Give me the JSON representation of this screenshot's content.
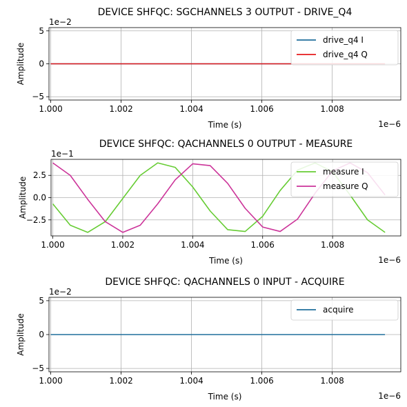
{
  "chart_data": [
    {
      "type": "line",
      "title": "DEVICE SHFQC: SGCHANNELS 3 OUTPUT - DRIVE_Q4",
      "xlabel": "Time (s)",
      "ylabel": "Amplitude",
      "x_offset_label": "1e−6",
      "y_offset_label": "1e−2",
      "xlim": [
        0.99995,
        1.00995
      ],
      "ylim": [
        -5.5,
        5.5
      ],
      "x_ticks": [
        1.0,
        1.002,
        1.004,
        1.006,
        1.008
      ],
      "x_tick_labels": [
        "1.000",
        "1.002",
        "1.004",
        "1.006",
        "1.008"
      ],
      "y_ticks": [
        5,
        0,
        -5
      ],
      "y_tick_labels": [
        "5",
        "0",
        "−5"
      ],
      "grid": true,
      "legend_position": "top-right",
      "series": [
        {
          "name": "drive_q4 I",
          "color": "#1f6e9c",
          "x": [
            1.0,
            1.0095
          ],
          "y": [
            0,
            0
          ]
        },
        {
          "name": "drive_q4 Q",
          "color": "#e41a1c",
          "x": [
            1.0,
            1.0095
          ],
          "y": [
            0,
            0
          ]
        }
      ]
    },
    {
      "type": "line",
      "title": "DEVICE SHFQC: QACHANNELS 0 OUTPUT - MEASURE",
      "xlabel": "Time (s)",
      "ylabel": "Amplitude",
      "x_offset_label": "1e−6",
      "y_offset_label": "1e−1",
      "xlim": [
        0.99995,
        1.00995
      ],
      "ylim": [
        -4.3,
        4.3
      ],
      "x_ticks": [
        1.0,
        1.002,
        1.004,
        1.006,
        1.008
      ],
      "x_tick_labels": [
        "1.000",
        "1.002",
        "1.004",
        "1.006",
        "1.008"
      ],
      "y_ticks": [
        2.5,
        0,
        -2.5
      ],
      "y_tick_labels": [
        "2.5",
        "0.0",
        "−2.5"
      ],
      "grid": true,
      "legend_position": "top-right",
      "series": [
        {
          "name": "measure I",
          "color": "#66cc33",
          "x": [
            1.0,
            1.0005,
            1.001,
            1.0015,
            1.002,
            1.0025,
            1.003,
            1.0035,
            1.004,
            1.0045,
            1.005,
            1.0055,
            1.006,
            1.0065,
            1.007,
            1.0075,
            1.008,
            1.0085,
            1.009,
            1.0095
          ],
          "y": [
            -0.7,
            -3.1,
            -3.9,
            -2.7,
            -0.1,
            2.5,
            3.9,
            3.4,
            1.2,
            -1.5,
            -3.6,
            -3.8,
            -2.1,
            0.8,
            3.1,
            3.9,
            2.9,
            0.3,
            -2.5,
            -3.9
          ]
        },
        {
          "name": "measure Q",
          "color": "#cc3399",
          "x": [
            1.0,
            1.0005,
            1.001,
            1.0015,
            1.002,
            1.0025,
            1.003,
            1.0035,
            1.004,
            1.0045,
            1.005,
            1.0055,
            1.006,
            1.0065,
            1.007,
            1.0075,
            1.008,
            1.0085,
            1.009,
            1.0095
          ],
          "y": [
            3.9,
            2.5,
            -0.2,
            -2.7,
            -3.9,
            -3.1,
            -0.7,
            2.0,
            3.8,
            3.6,
            1.6,
            -1.2,
            -3.3,
            -3.8,
            -2.4,
            0.5,
            3.0,
            3.9,
            2.8,
            0.3
          ]
        }
      ]
    },
    {
      "type": "line",
      "title": "DEVICE SHFQC: QACHANNELS 0 INPUT - ACQUIRE",
      "xlabel": "Time (s)",
      "ylabel": "Amplitude",
      "x_offset_label": "1e−6",
      "y_offset_label": "1e−2",
      "xlim": [
        0.99995,
        1.00995
      ],
      "ylim": [
        -5.5,
        5.5
      ],
      "x_ticks": [
        1.0,
        1.002,
        1.004,
        1.006,
        1.008
      ],
      "x_tick_labels": [
        "1.000",
        "1.002",
        "1.004",
        "1.006",
        "1.008"
      ],
      "y_ticks": [
        5,
        0,
        -5
      ],
      "y_tick_labels": [
        "5",
        "0",
        "−5"
      ],
      "grid": true,
      "legend_position": "top-right",
      "series": [
        {
          "name": "acquire",
          "color": "#1f6e9c",
          "x": [
            1.0,
            1.0095
          ],
          "y": [
            0,
            0
          ]
        }
      ]
    }
  ]
}
